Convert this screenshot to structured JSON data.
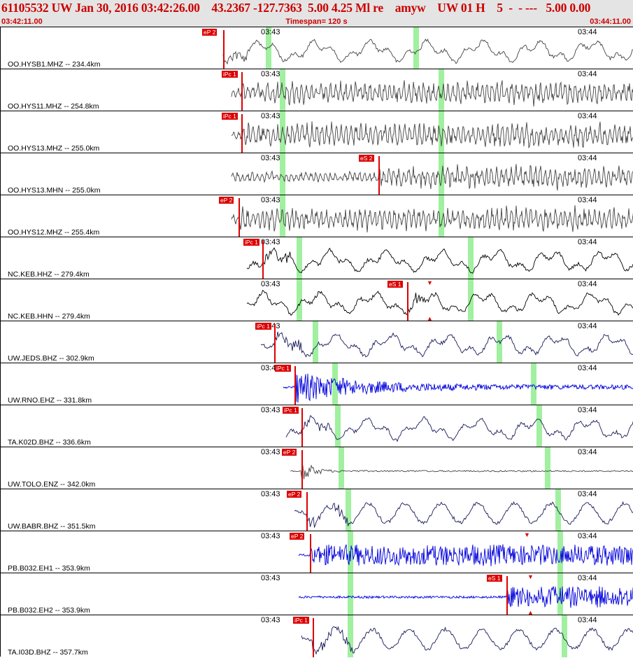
{
  "header": {
    "title": "61105532 UW Jan 30, 2016 03:42:26.00    43.2367 -127.7363  5.00 4.25 Ml re    amyw    UW 01 H    5  -  - ---   5.00 0.00",
    "time_start": "03:42:11.00",
    "timespan": "Timespan= 120 s",
    "time_end": "03:44:11.00"
  },
  "tick_labels": {
    "a": "03:43",
    "b": "03:44"
  },
  "colors": {
    "pick": "#dd0000",
    "green_marker": "#a0f0a0",
    "title": "#cc0000",
    "header_bg": "#e4e4e4"
  },
  "channels": [
    {
      "label": "OO.HYSB1.MHZ -- 234.4km",
      "pick": "eP 2",
      "color": "#444444",
      "style": "low"
    },
    {
      "label": "OO.HYS11.MHZ -- 254.8km",
      "pick": "iPc 1",
      "color": "#444444",
      "style": "dense"
    },
    {
      "label": "OO.HYS13.MHZ -- 255.0km",
      "pick": "iPc 1",
      "color": "#444444",
      "style": "dense"
    },
    {
      "label": "OO.HYS13.MHN -- 255.0km",
      "pick": "eS 2",
      "color": "#444444",
      "style": "dense"
    },
    {
      "label": "OO.HYS12.MHZ -- 255.4km",
      "pick": "eP 2",
      "color": "#444444",
      "style": "dense"
    },
    {
      "label": "NC.KEB.HHZ -- 279.4km",
      "pick": "iPc 1",
      "color": "#000000",
      "style": "low"
    },
    {
      "label": "NC.KEB.HHN -- 279.4km",
      "pick": "eS 1",
      "color": "#000000",
      "style": "low"
    },
    {
      "label": "UW.JEDS.BHZ -- 302.9km",
      "pick": "iPc 1",
      "color": "#1a1a5a",
      "style": "low"
    },
    {
      "label": "UW.RNO.EHZ -- 331.8km",
      "pick": "iPc 1",
      "color": "#0000dd",
      "style": "burst"
    },
    {
      "label": "TA.K02D.BHZ -- 336.6km",
      "pick": "iPc 1",
      "color": "#1a1a5a",
      "style": "low"
    },
    {
      "label": "UW.TOLO.ENZ -- 342.0km",
      "pick": "eP 2",
      "color": "#444444",
      "style": "decay"
    },
    {
      "label": "UW.BABR.BHZ -- 351.5km",
      "pick": "eP 2",
      "color": "#1a1a5a",
      "style": "medium"
    },
    {
      "label": "PB.B032.EH1 -- 353.9km",
      "pick": "eP 2",
      "color": "#0000dd",
      "style": "burst2"
    },
    {
      "label": "PB.B032.EH2 -- 353.9km",
      "pick": "eS 1",
      "color": "#0000dd",
      "style": "burst2"
    },
    {
      "label": "TA.I03D.BHZ -- 357.7km",
      "pick": "iPc 1",
      "color": "#1a1a5a",
      "style": "medium"
    }
  ]
}
